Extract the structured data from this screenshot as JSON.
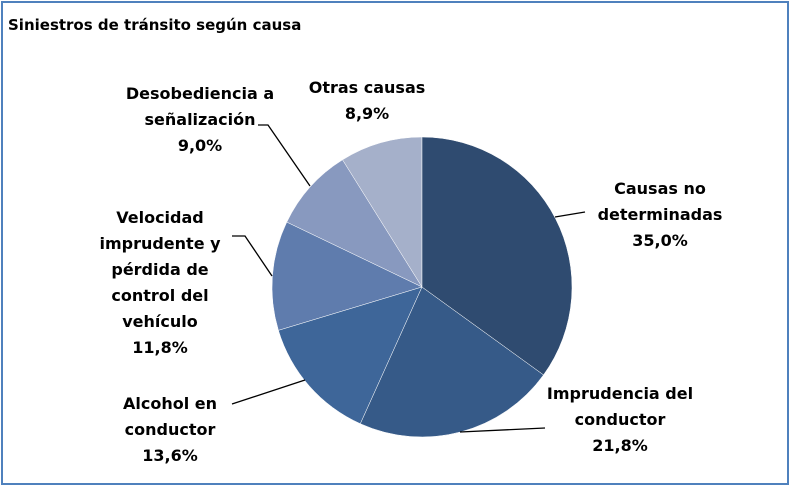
{
  "chart_data": {
    "type": "pie",
    "title": "Siniestros de tránsito según causa",
    "categories": [
      "Causas no determinadas",
      "Imprudencia del conductor",
      "Alcohol en conductor",
      "Velocidad imprudente y pérdida de control del vehículo",
      "Desobediencia a señalización",
      "Otras causas"
    ],
    "values": [
      35.0,
      21.8,
      13.6,
      11.8,
      9.0,
      8.9
    ],
    "value_labels": [
      "35,0%",
      "21,8%",
      "13,6%",
      "11,8%",
      "9,0%",
      "8,9%"
    ],
    "colors": [
      "#2f4b70",
      "#365a88",
      "#3e6699",
      "#5f7cad",
      "#8899bf",
      "#a5b0ca"
    ]
  }
}
